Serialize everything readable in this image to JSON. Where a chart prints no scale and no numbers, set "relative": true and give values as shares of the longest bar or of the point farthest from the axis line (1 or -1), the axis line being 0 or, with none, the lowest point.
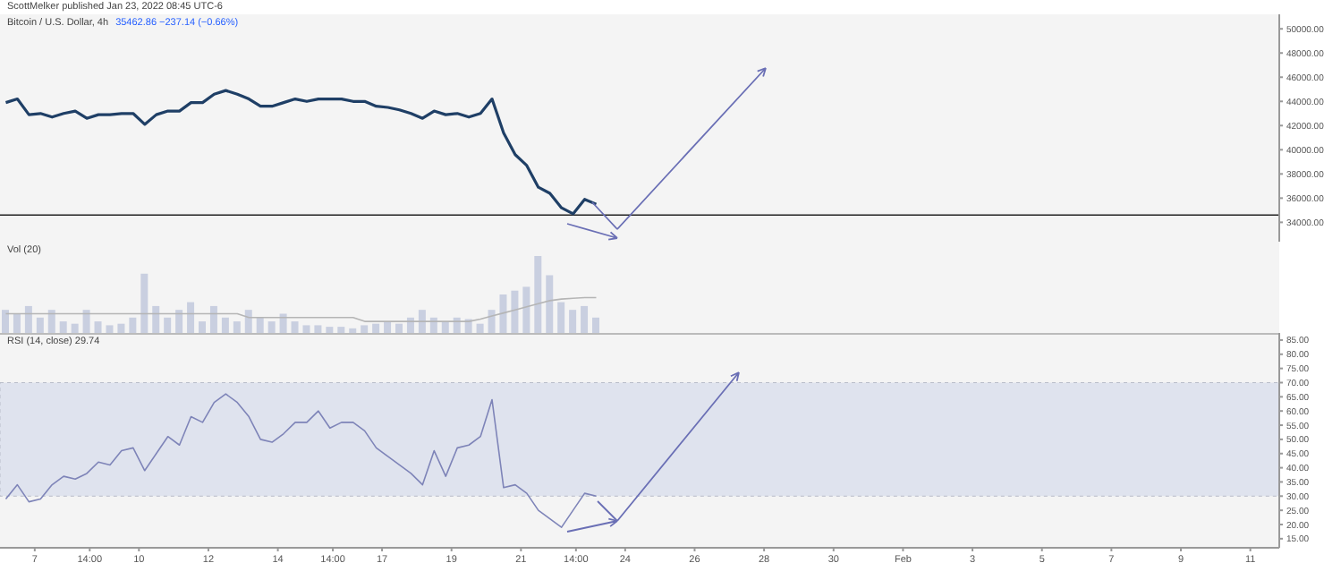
{
  "chart_data": [
    {
      "type": "line",
      "title": "Bitcoin / U.S. Dollar, 4h",
      "subtitle": "35462.86 −237.14 (−0.66%)",
      "annotations": [
        "ScottMelker published Jan 23, 2022 08:45 UTC-6"
      ],
      "x": [
        "2022-01-06T04:00",
        "2022-01-06T12:00",
        "2022-01-06T20:00",
        "2022-01-07T04:00",
        "2022-01-07T12:00",
        "2022-01-07T20:00",
        "2022-01-08T04:00",
        "2022-01-08T12:00",
        "2022-01-08T20:00",
        "2022-01-09T04:00",
        "2022-01-09T12:00",
        "2022-01-09T20:00",
        "2022-01-10T04:00",
        "2022-01-10T12:00",
        "2022-01-10T20:00",
        "2022-01-11T04:00",
        "2022-01-11T12:00",
        "2022-01-11T20:00",
        "2022-01-12T04:00",
        "2022-01-12T12:00",
        "2022-01-12T20:00",
        "2022-01-13T04:00",
        "2022-01-13T12:00",
        "2022-01-13T20:00",
        "2022-01-14T04:00",
        "2022-01-14T12:00",
        "2022-01-14T20:00",
        "2022-01-15T04:00",
        "2022-01-15T12:00",
        "2022-01-15T20:00",
        "2022-01-16T04:00",
        "2022-01-16T12:00",
        "2022-01-16T20:00",
        "2022-01-17T04:00",
        "2022-01-17T12:00",
        "2022-01-17T20:00",
        "2022-01-18T04:00",
        "2022-01-18T12:00",
        "2022-01-18T20:00",
        "2022-01-19T04:00",
        "2022-01-19T12:00",
        "2022-01-19T20:00",
        "2022-01-20T04:00",
        "2022-01-20T12:00",
        "2022-01-20T20:00",
        "2022-01-21T04:00",
        "2022-01-21T12:00",
        "2022-01-21T20:00",
        "2022-01-22T04:00",
        "2022-01-22T12:00",
        "2022-01-22T20:00",
        "2022-01-23T04:00"
      ],
      "series": [
        {
          "color": "#1f3f66",
          "values": [
            43900,
            44200,
            42900,
            43000,
            42700,
            43000,
            43200,
            42600,
            42900,
            42900,
            43000,
            43000,
            42100,
            42900,
            43200,
            43200,
            43900,
            43900,
            44600,
            44900,
            44600,
            44200,
            43600,
            43600,
            43900,
            44200,
            44000,
            44200,
            44200,
            44200,
            44000,
            44000,
            43600,
            43500,
            43300,
            43000,
            42600,
            43200,
            42900,
            43000,
            42700,
            43000,
            44200,
            41400,
            39600,
            38700,
            36900,
            36400,
            35200,
            34700,
            35900,
            35500
          ]
        }
      ],
      "xlim": [
        "2022-01-06T00:00",
        "2022-02-11T20:00"
      ],
      "ylim": [
        32400,
        51200
      ],
      "yticks": [
        {
          "value": 34000,
          "label": "34000.00"
        },
        {
          "value": 36000,
          "label": "36000.00"
        },
        {
          "value": 38000,
          "label": "38000.00"
        },
        {
          "value": 40000,
          "label": "40000.00"
        },
        {
          "value": 42000,
          "label": "42000.00"
        },
        {
          "value": 44000,
          "label": "44000.00"
        },
        {
          "value": 46000,
          "label": "46000.00"
        },
        {
          "value": 48000,
          "label": "48000.00"
        },
        {
          "value": 50000,
          "label": "50000.00"
        }
      ],
      "ref_lines": [
        {
          "axis": "y",
          "value": 34600,
          "color": "#222222"
        }
      ],
      "tick_labels": "y"
    },
    {
      "type": "bar",
      "title": "Vol (20)",
      "relative": true,
      "x": [
        "2022-01-06T04:00",
        "2022-01-06T12:00",
        "2022-01-06T20:00",
        "2022-01-07T04:00",
        "2022-01-07T12:00",
        "2022-01-07T20:00",
        "2022-01-08T04:00",
        "2022-01-08T12:00",
        "2022-01-08T20:00",
        "2022-01-09T04:00",
        "2022-01-09T12:00",
        "2022-01-09T20:00",
        "2022-01-10T04:00",
        "2022-01-10T12:00",
        "2022-01-10T20:00",
        "2022-01-11T04:00",
        "2022-01-11T12:00",
        "2022-01-11T20:00",
        "2022-01-12T04:00",
        "2022-01-12T12:00",
        "2022-01-12T20:00",
        "2022-01-13T04:00",
        "2022-01-13T12:00",
        "2022-01-13T20:00",
        "2022-01-14T04:00",
        "2022-01-14T12:00",
        "2022-01-14T20:00",
        "2022-01-15T04:00",
        "2022-01-15T12:00",
        "2022-01-15T20:00",
        "2022-01-16T04:00",
        "2022-01-16T12:00",
        "2022-01-16T20:00",
        "2022-01-17T04:00",
        "2022-01-17T12:00",
        "2022-01-17T20:00",
        "2022-01-18T04:00",
        "2022-01-18T12:00",
        "2022-01-18T20:00",
        "2022-01-19T04:00",
        "2022-01-19T12:00",
        "2022-01-19T20:00",
        "2022-01-20T04:00",
        "2022-01-20T12:00",
        "2022-01-20T20:00",
        "2022-01-21T04:00",
        "2022-01-21T12:00",
        "2022-01-21T20:00",
        "2022-01-22T04:00",
        "2022-01-22T12:00",
        "2022-01-22T20:00",
        "2022-01-23T04:00"
      ],
      "series": [
        {
          "color": "#c9cfe0",
          "values": [
            0.3,
            0.25,
            0.35,
            0.2,
            0.3,
            0.15,
            0.12,
            0.3,
            0.15,
            0.1,
            0.12,
            0.2,
            0.77,
            0.35,
            0.2,
            0.3,
            0.4,
            0.15,
            0.35,
            0.2,
            0.15,
            0.3,
            0.2,
            0.15,
            0.25,
            0.15,
            0.1,
            0.1,
            0.08,
            0.08,
            0.06,
            0.1,
            0.12,
            0.15,
            0.12,
            0.2,
            0.3,
            0.2,
            0.15,
            0.2,
            0.18,
            0.12,
            0.3,
            0.5,
            0.55,
            0.6,
            1,
            0.75,
            0.4,
            0.3,
            0.35,
            0.2
          ]
        },
        {
          "type": "line",
          "color": "#b5b5b5",
          "values": [
            0.25,
            0.25,
            0.25,
            0.25,
            0.25,
            0.25,
            0.25,
            0.25,
            0.25,
            0.25,
            0.25,
            0.25,
            0.25,
            0.25,
            0.25,
            0.25,
            0.25,
            0.25,
            0.25,
            0.25,
            0.25,
            0.2,
            0.2,
            0.2,
            0.2,
            0.2,
            0.2,
            0.2,
            0.2,
            0.2,
            0.2,
            0.15,
            0.15,
            0.15,
            0.15,
            0.15,
            0.15,
            0.15,
            0.15,
            0.15,
            0.15,
            0.18,
            0.22,
            0.26,
            0.3,
            0.34,
            0.38,
            0.42,
            0.44,
            0.45,
            0.46,
            0.46
          ]
        }
      ],
      "xlim": [
        "2022-01-06T00:00",
        "2022-02-11T20:00"
      ],
      "tick_labels": false
    },
    {
      "type": "line",
      "title": "RSI (14, close) 29.74",
      "x": [
        "2022-01-06T04:00",
        "2022-01-06T12:00",
        "2022-01-06T20:00",
        "2022-01-07T04:00",
        "2022-01-07T12:00",
        "2022-01-07T20:00",
        "2022-01-08T04:00",
        "2022-01-08T12:00",
        "2022-01-08T20:00",
        "2022-01-09T04:00",
        "2022-01-09T12:00",
        "2022-01-09T20:00",
        "2022-01-10T04:00",
        "2022-01-10T12:00",
        "2022-01-10T20:00",
        "2022-01-11T04:00",
        "2022-01-11T12:00",
        "2022-01-11T20:00",
        "2022-01-12T04:00",
        "2022-01-12T12:00",
        "2022-01-12T20:00",
        "2022-01-13T04:00",
        "2022-01-13T12:00",
        "2022-01-13T20:00",
        "2022-01-14T04:00",
        "2022-01-14T12:00",
        "2022-01-14T20:00",
        "2022-01-15T04:00",
        "2022-01-15T12:00",
        "2022-01-15T20:00",
        "2022-01-16T04:00",
        "2022-01-16T12:00",
        "2022-01-16T20:00",
        "2022-01-17T04:00",
        "2022-01-17T12:00",
        "2022-01-17T20:00",
        "2022-01-18T04:00",
        "2022-01-18T12:00",
        "2022-01-18T20:00",
        "2022-01-19T04:00",
        "2022-01-19T12:00",
        "2022-01-19T20:00",
        "2022-01-20T04:00",
        "2022-01-20T12:00",
        "2022-01-20T20:00",
        "2022-01-21T04:00",
        "2022-01-21T12:00",
        "2022-01-21T20:00",
        "2022-01-22T04:00",
        "2022-01-22T12:00",
        "2022-01-22T20:00",
        "2022-01-23T04:00"
      ],
      "series": [
        {
          "color": "#7e84b8",
          "values": [
            29,
            34,
            28,
            29,
            34,
            37,
            36,
            38,
            42,
            41,
            46,
            47,
            39,
            45,
            51,
            48,
            58,
            56,
            63,
            66,
            63,
            58,
            50,
            49,
            52,
            56,
            56,
            60,
            54,
            56,
            56,
            53,
            47,
            44,
            41,
            38,
            34,
            46,
            37,
            47,
            48,
            51,
            64,
            33,
            34,
            31,
            25,
            22,
            19,
            25,
            31,
            30
          ]
        }
      ],
      "xlim": [
        "2022-01-06T00:00",
        "2022-02-11T20:00"
      ],
      "ylim": [
        11.8,
        87.5
      ],
      "xticks": [
        {
          "value": "2022-01-07",
          "label": "7"
        },
        {
          "value": "2022-01-08T14:00",
          "label": "14:00"
        },
        {
          "value": "2022-01-10",
          "label": "10"
        },
        {
          "value": "2022-01-12",
          "label": "12"
        },
        {
          "value": "2022-01-14",
          "label": "14"
        },
        {
          "value": "2022-01-15T14:00",
          "label": "14:00"
        },
        {
          "value": "2022-01-17",
          "label": "17"
        },
        {
          "value": "2022-01-19",
          "label": "19"
        },
        {
          "value": "2022-01-21",
          "label": "21"
        },
        {
          "value": "2022-01-22T14:00",
          "label": "14:00"
        },
        {
          "value": "2022-01-24",
          "label": "24"
        },
        {
          "value": "2022-01-26",
          "label": "26"
        },
        {
          "value": "2022-01-28",
          "label": "28"
        },
        {
          "value": "2022-01-30",
          "label": "30"
        },
        {
          "value": "2022-02-01",
          "label": "Feb"
        },
        {
          "value": "2022-02-03",
          "label": "3"
        },
        {
          "value": "2022-02-05",
          "label": "5"
        },
        {
          "value": "2022-02-07",
          "label": "7"
        },
        {
          "value": "2022-02-09",
          "label": "9"
        },
        {
          "value": "2022-02-11",
          "label": "11"
        }
      ],
      "yticks": [
        {
          "value": 15,
          "label": "15.00"
        },
        {
          "value": 20,
          "label": "20.00"
        },
        {
          "value": 25,
          "label": "25.00"
        },
        {
          "value": 30,
          "label": "30.00"
        },
        {
          "value": 35,
          "label": "35.00"
        },
        {
          "value": 40,
          "label": "40.00"
        },
        {
          "value": 45,
          "label": "45.00"
        },
        {
          "value": 50,
          "label": "50.00"
        },
        {
          "value": 55,
          "label": "55.00"
        },
        {
          "value": 60,
          "label": "60.00"
        },
        {
          "value": 65,
          "label": "65.00"
        },
        {
          "value": 70,
          "label": "70.00"
        },
        {
          "value": 75,
          "label": "75.00"
        },
        {
          "value": 80,
          "label": "80.00"
        },
        {
          "value": 85,
          "label": "85.00"
        }
      ],
      "bands": [
        {
          "axis": "y",
          "from": 30,
          "to": 70,
          "color": "#dfe3ee"
        }
      ]
    }
  ]
}
